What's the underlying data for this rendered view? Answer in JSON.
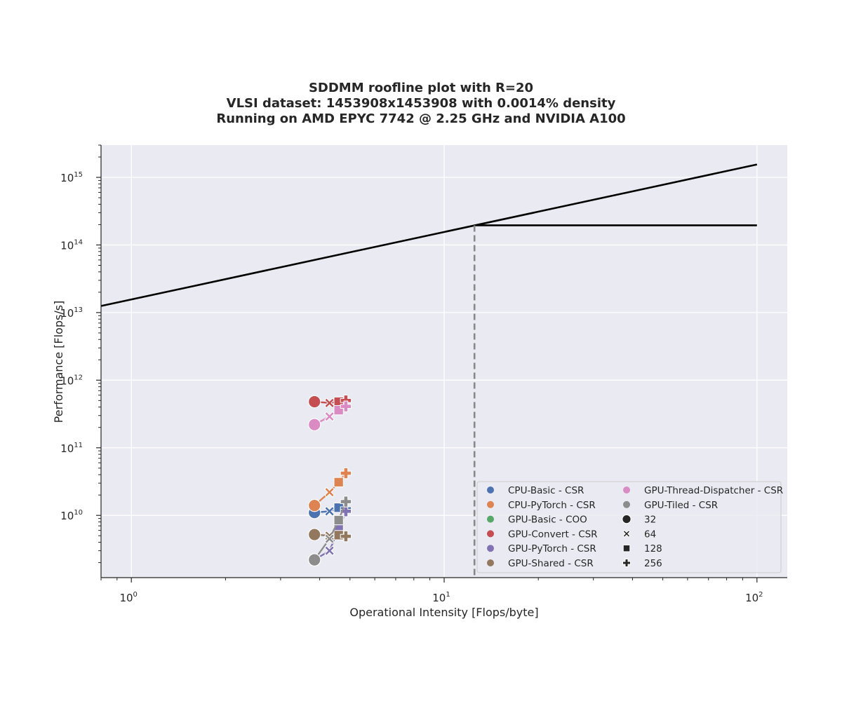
{
  "chart_data": {
    "type": "scatter",
    "title_lines": [
      "SDDMM roofline plot with R=20",
      "VLSI dataset: 1453908x1453908 with 0.0014% density",
      "Running on AMD EPYC 7742 @ 2.25 GHz and NVIDIA A100"
    ],
    "xlabel": "Operational Intensity [Flops/byte]",
    "ylabel": "Performance [Flops/s]",
    "xscale": "log",
    "yscale": "log",
    "xlim": [
      0.8,
      125
    ],
    "ylim": [
      1200000000.0,
      3000000000000000.0
    ],
    "x_ticks": [
      {
        "value": 1,
        "base": "10",
        "exp": "0"
      },
      {
        "value": 10,
        "base": "10",
        "exp": "1"
      },
      {
        "value": 100,
        "base": "10",
        "exp": "2"
      }
    ],
    "y_ticks": [
      {
        "value": 10000000000.0,
        "base": "10",
        "exp": "10"
      },
      {
        "value": 100000000000.0,
        "base": "10",
        "exp": "11"
      },
      {
        "value": 1000000000000.0,
        "base": "10",
        "exp": "12"
      },
      {
        "value": 10000000000000.0,
        "base": "10",
        "exp": "13"
      },
      {
        "value": 100000000000000.0,
        "base": "10",
        "exp": "14"
      },
      {
        "value": 1000000000000000.0,
        "base": "10",
        "exp": "15"
      }
    ],
    "grid": true,
    "roofline": {
      "memory_bound": [
        [
          0.8,
          12500000000000.0
        ],
        [
          100,
          1550000000000000.0
        ]
      ],
      "compute_bound": [
        [
          12.5,
          195000000000000.0
        ],
        [
          100,
          195000000000000.0
        ]
      ],
      "ridge": [
        12.5,
        195000000000000.0
      ],
      "color": "#000000",
      "ridge_color": "#888888"
    },
    "series": [
      {
        "name": "CPU-Basic - CSR",
        "color": "#4c72b0",
        "points": [
          [
            3.85,
            11000000000.0
          ],
          [
            4.3,
            11500000000.0
          ],
          [
            4.6,
            13000000000.0
          ],
          [
            4.85,
            12500000000.0
          ]
        ]
      },
      {
        "name": "CPU-PyTorch - CSR",
        "color": "#dd8452",
        "points": [
          [
            3.85,
            14000000000.0
          ],
          [
            4.3,
            22000000000.0
          ],
          [
            4.6,
            31000000000.0
          ],
          [
            4.85,
            42000000000.0
          ]
        ]
      },
      {
        "name": "GPU-Basic - COO",
        "color": "#55a868",
        "points": []
      },
      {
        "name": "GPU-Convert - CSR",
        "color": "#c44e52",
        "points": [
          [
            3.85,
            480000000000.0
          ],
          [
            4.3,
            460000000000.0
          ],
          [
            4.6,
            480000000000.0
          ],
          [
            4.85,
            500000000000.0
          ]
        ]
      },
      {
        "name": "GPU-PyTorch - CSR",
        "color": "#8172b3",
        "points": [
          [
            3.85,
            2200000000.0
          ],
          [
            4.3,
            3000000000.0
          ],
          [
            4.6,
            6200000000.0
          ],
          [
            4.85,
            11500000000.0
          ]
        ]
      },
      {
        "name": "GPU-Shared - CSR",
        "color": "#937860",
        "points": [
          [
            3.85,
            5200000000.0
          ],
          [
            4.3,
            5000000000.0
          ],
          [
            4.6,
            5100000000.0
          ],
          [
            4.85,
            4900000000.0
          ]
        ]
      },
      {
        "name": "GPU-Thread-Dispatcher - CSR",
        "color": "#da8bc3",
        "points": [
          [
            3.85,
            220000000000.0
          ],
          [
            4.3,
            290000000000.0
          ],
          [
            4.6,
            360000000000.0
          ],
          [
            4.85,
            410000000000.0
          ]
        ]
      },
      {
        "name": "GPU-Tiled - CSR",
        "color": "#8c8c8c",
        "points": [
          [
            3.85,
            2200000000.0
          ],
          [
            4.3,
            4500000000.0
          ],
          [
            4.6,
            8500000000.0
          ],
          [
            4.85,
            16000000000.0
          ]
        ]
      }
    ],
    "marker_legend": [
      {
        "name": "32",
        "marker": "circle"
      },
      {
        "name": "64",
        "marker": "x"
      },
      {
        "name": "128",
        "marker": "square"
      },
      {
        "name": "256",
        "marker": "plus"
      }
    ],
    "legend_position": "lower right",
    "colors": {
      "plot_bg": "#eaeaf2",
      "grid": "#ffffff",
      "legend_marker": "#262626"
    }
  }
}
